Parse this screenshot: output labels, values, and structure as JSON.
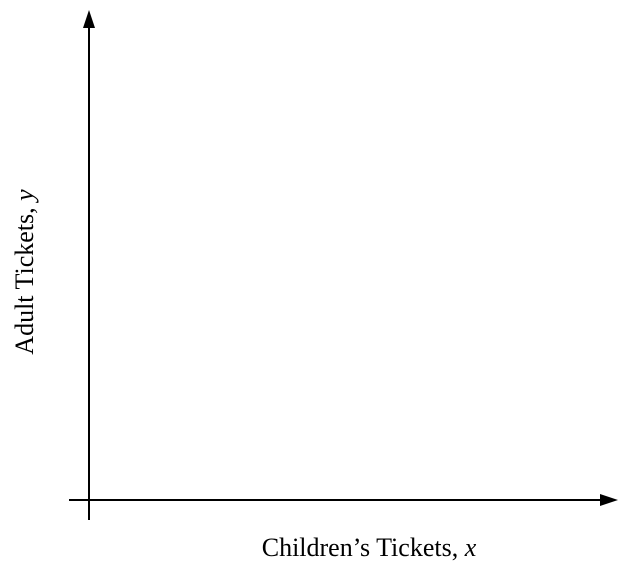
{
  "axes": {
    "x_label": {
      "text": "Children’s Tickets, ",
      "variable": "x"
    },
    "y_label": {
      "text": "Adult Tickets, ",
      "variable": "y"
    }
  },
  "colors": {
    "line": "#000000",
    "background": "#ffffff"
  }
}
